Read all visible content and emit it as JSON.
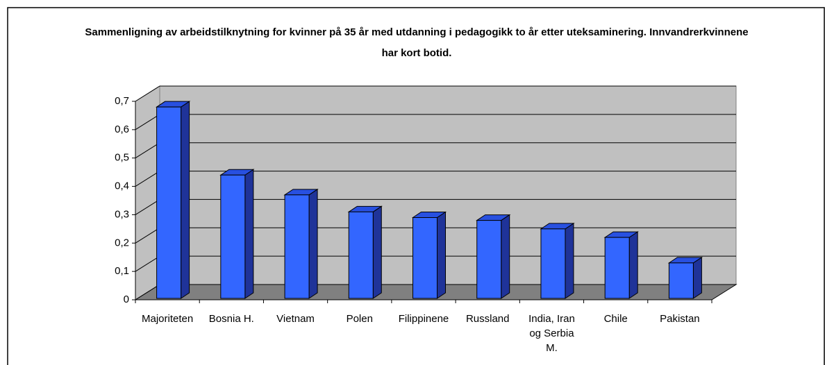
{
  "chart_data": {
    "type": "bar3d",
    "title": "Sammenligning av arbeidstilknytning for kvinner på 35 år med utdanning i pedagogikk to år etter uteksaminering. Innvandrerkvinnene har kort botid.",
    "categories": [
      "Majoriteten",
      "Bosnia H.",
      "Vietnam",
      "Polen",
      "Filippinene",
      "Russland",
      "India, Iran og Serbia M.",
      "Chile",
      "Pakistan"
    ],
    "values": [
      0.68,
      0.44,
      0.37,
      0.31,
      0.29,
      0.28,
      0.25,
      0.22,
      0.13
    ],
    "color": "#3366ff",
    "ylim": [
      0,
      0.7
    ],
    "yticks": [
      0,
      {
        "value": 0.1,
        "label": "0,1"
      },
      {
        "value": 0.2,
        "label": "0,2"
      },
      {
        "value": 0.3,
        "label": "0,3"
      },
      {
        "value": 0.4,
        "label": "0,4"
      },
      {
        "value": 0.5,
        "label": "0,5"
      },
      {
        "value": 0.6,
        "label": "0,6"
      },
      {
        "value": 0.7,
        "label": "0,7"
      }
    ],
    "grid": true
  }
}
